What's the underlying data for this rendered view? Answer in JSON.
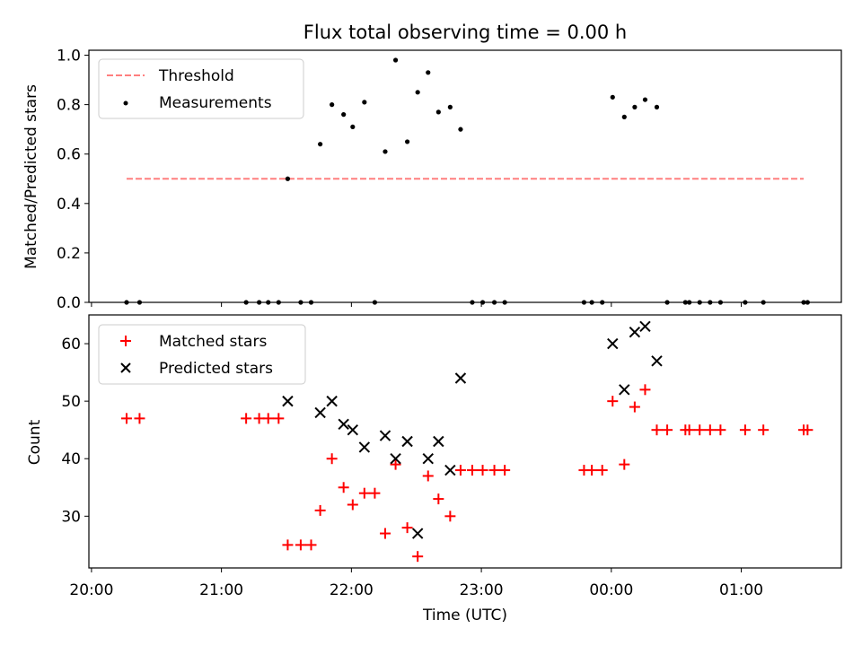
{
  "chart_data": [
    {
      "type": "scatter",
      "title": "Flux total observing time = 0.00 h",
      "ylabel": "Matched/Predicted stars",
      "xlabel": "",
      "xlim_hours": [
        19.98,
        25.77
      ],
      "ylim": [
        0,
        1.02
      ],
      "ytick_labels": [
        "0.0",
        "0.2",
        "0.4",
        "0.6",
        "0.8",
        "1.0"
      ],
      "yticks": [
        0,
        0.2,
        0.4,
        0.6,
        0.8,
        1.0
      ],
      "legend_position": "upper left",
      "series": [
        {
          "name": "Threshold",
          "kind": "dashed-line",
          "color": "#ff7f7f",
          "x": [
            20.27,
            25.48
          ],
          "y": [
            0.5,
            0.5
          ]
        },
        {
          "name": "Measurements",
          "kind": "dots",
          "color": "#000000",
          "x": [
            20.27,
            20.37,
            21.19,
            21.29,
            21.36,
            21.44,
            21.51,
            21.61,
            21.69,
            21.76,
            21.85,
            21.94,
            22.01,
            22.1,
            22.18,
            22.26,
            22.34,
            22.43,
            22.51,
            22.59,
            22.67,
            22.76,
            22.84,
            22.93,
            23.01,
            23.1,
            23.18,
            23.79,
            23.85,
            23.93,
            24.01,
            24.1,
            24.18,
            24.26,
            24.35,
            24.43,
            24.57,
            24.6,
            24.68,
            24.76,
            24.84,
            25.03,
            25.17,
            25.48,
            25.51
          ],
          "y": [
            0,
            0,
            0,
            0,
            0,
            0,
            0.5,
            0,
            0,
            0.64,
            0.8,
            0.76,
            0.71,
            0.81,
            0,
            0.61,
            0.98,
            0.65,
            0.85,
            0.93,
            0.77,
            0.79,
            0.7,
            0,
            0,
            0,
            0,
            0,
            0,
            0,
            0.83,
            0.75,
            0.79,
            0.82,
            0.79,
            0,
            0,
            0,
            0,
            0,
            0,
            0,
            0,
            0,
            0
          ]
        }
      ]
    },
    {
      "type": "scatter",
      "title": "",
      "ylabel": "Count",
      "xlabel": "Time (UTC)",
      "xlim_hours": [
        19.98,
        25.77
      ],
      "ylim": [
        21,
        65
      ],
      "xticks_hours": [
        20,
        21,
        22,
        23,
        24,
        25
      ],
      "xtick_labels": [
        "20:00",
        "21:00",
        "22:00",
        "23:00",
        "00:00",
        "01:00"
      ],
      "yticks": [
        30,
        40,
        50,
        60
      ],
      "ytick_labels": [
        "30",
        "40",
        "50",
        "60"
      ],
      "legend_position": "upper left",
      "series": [
        {
          "name": "Matched stars",
          "kind": "plus",
          "color": "#ff0000",
          "x": [
            20.27,
            20.37,
            21.19,
            21.29,
            21.36,
            21.44,
            21.51,
            21.61,
            21.69,
            21.76,
            21.85,
            21.94,
            22.01,
            22.1,
            22.18,
            22.26,
            22.34,
            22.43,
            22.51,
            22.59,
            22.67,
            22.76,
            22.84,
            22.93,
            23.01,
            23.1,
            23.18,
            23.79,
            23.85,
            23.93,
            24.01,
            24.1,
            24.18,
            24.26,
            24.35,
            24.43,
            24.57,
            24.6,
            24.68,
            24.76,
            24.84,
            25.03,
            25.17,
            25.48,
            25.51
          ],
          "y": [
            47,
            47,
            47,
            47,
            47,
            47,
            25,
            25,
            25,
            31,
            40,
            35,
            32,
            34,
            34,
            27,
            39,
            28,
            23,
            37,
            33,
            30,
            38,
            38,
            38,
            38,
            38,
            38,
            38,
            38,
            50,
            39,
            49,
            52,
            45,
            45,
            45,
            45,
            45,
            45,
            45,
            45,
            45,
            45,
            45
          ]
        },
        {
          "name": "Predicted stars",
          "kind": "x",
          "color": "#000000",
          "x": [
            21.51,
            21.76,
            21.85,
            21.94,
            22.01,
            22.1,
            22.26,
            22.34,
            22.43,
            22.51,
            22.59,
            22.67,
            22.76,
            22.84,
            24.01,
            24.1,
            24.18,
            24.26,
            24.35
          ],
          "y": [
            50,
            48,
            50,
            46,
            45,
            42,
            44,
            40,
            43,
            27,
            40,
            43,
            38,
            54,
            60,
            52,
            62,
            63,
            57
          ]
        }
      ]
    }
  ]
}
